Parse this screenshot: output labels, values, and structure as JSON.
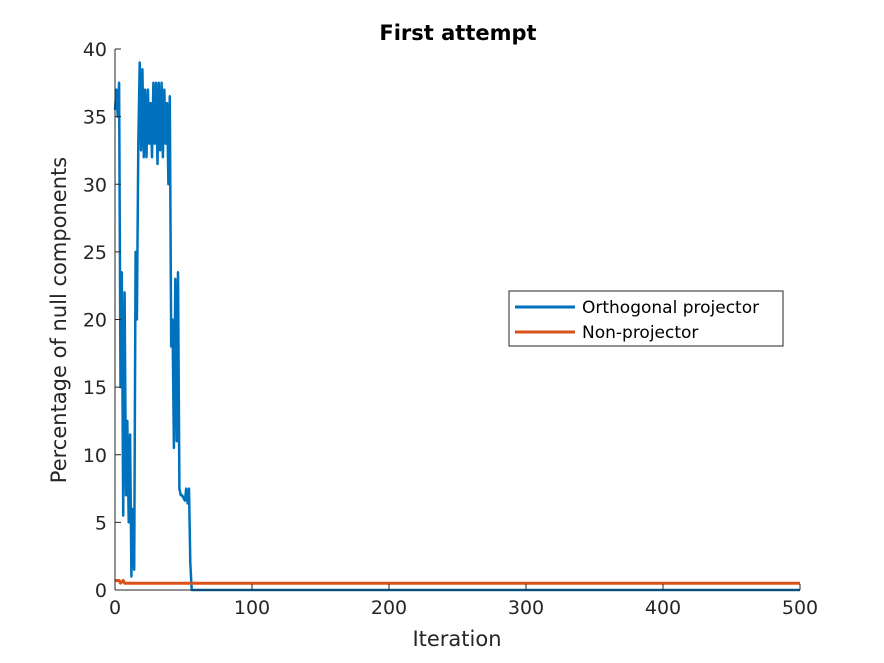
{
  "chart_data": {
    "type": "line",
    "title": "First attempt",
    "xlabel": "Iteration",
    "ylabel": "Percentage of null components",
    "xlim": [
      0,
      500
    ],
    "ylim": [
      0,
      40
    ],
    "xticks": [
      "0",
      "100",
      "200",
      "300",
      "400",
      "500"
    ],
    "yticks": [
      "0",
      "5",
      "10",
      "15",
      "20",
      "25",
      "30",
      "35",
      "40"
    ],
    "grid": false,
    "legend": {
      "position": "center-right",
      "entries": [
        "Orthogonal projector",
        "Non-projector"
      ]
    },
    "series": [
      {
        "name": "Orthogonal projector",
        "color": "#0072BD",
        "x": [
          0,
          1,
          2,
          3,
          4,
          5,
          6,
          7,
          8,
          9,
          10,
          11,
          12,
          13,
          14,
          15,
          16,
          17,
          18,
          19,
          20,
          21,
          22,
          23,
          24,
          25,
          26,
          27,
          28,
          29,
          30,
          31,
          32,
          33,
          34,
          35,
          36,
          37,
          38,
          39,
          40,
          41,
          42,
          43,
          44,
          45,
          46,
          47,
          48,
          49,
          50,
          51,
          52,
          53,
          54,
          55,
          56,
          57,
          58,
          59,
          60,
          500
        ],
        "values": [
          35.5,
          37,
          35,
          37.5,
          15,
          23.5,
          5.5,
          22,
          7,
          12.5,
          5,
          11.5,
          1,
          6,
          1.5,
          25,
          20,
          33,
          39,
          32.5,
          38.5,
          32,
          37,
          32,
          37,
          33,
          36,
          32,
          37.5,
          33,
          37.5,
          31.5,
          37.5,
          32.5,
          37.5,
          32,
          37,
          33,
          36,
          30,
          36.5,
          18,
          20,
          10.5,
          23,
          11,
          23.5,
          7.5,
          7,
          7,
          6.8,
          6.6,
          7.5,
          6.4,
          7.5,
          2,
          0,
          0,
          0,
          0,
          0,
          0
        ]
      },
      {
        "name": "Non-projector",
        "color": "#D95319",
        "x": [
          0,
          3,
          4,
          6,
          7,
          500
        ],
        "values": [
          0.7,
          0.7,
          0.5,
          0.7,
          0.5,
          0.5
        ]
      }
    ]
  }
}
